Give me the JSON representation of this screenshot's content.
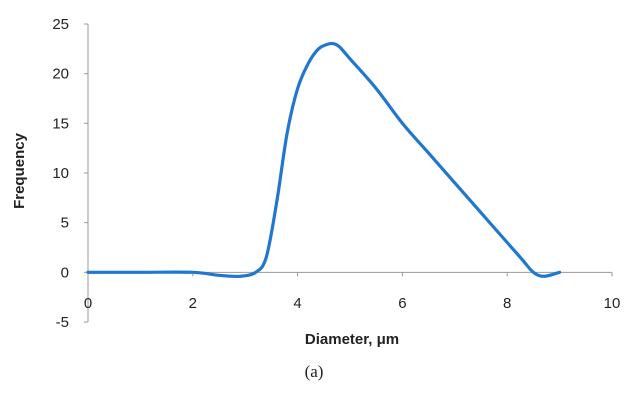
{
  "chart_data": {
    "type": "line",
    "xlabel": "Diameter, μm",
    "ylabel": "Frequency",
    "xlim": [
      0,
      10
    ],
    "ylim": [
      -5,
      25
    ],
    "xticks": [
      0,
      2,
      4,
      6,
      8,
      10
    ],
    "yticks": [
      -5,
      0,
      5,
      10,
      15,
      20,
      25
    ],
    "grid": false,
    "line_color": "#1f77d0",
    "series": [
      {
        "x": [
          0,
          1,
          2,
          2.5,
          2.9,
          3.2,
          3.4,
          3.6,
          3.8,
          4.0,
          4.2,
          4.4,
          4.6,
          4.7,
          4.8,
          5.0,
          5.5,
          6.0,
          6.5,
          7.0,
          7.5,
          8.0,
          8.3,
          8.5,
          8.7,
          9.0
        ],
        "y": [
          0,
          0,
          0,
          -0.3,
          -0.4,
          0,
          1.5,
          7,
          14,
          18.5,
          21,
          22.5,
          23,
          23,
          22.7,
          21.5,
          18.5,
          15,
          12,
          9,
          6,
          3,
          1.2,
          0,
          -0.4,
          0
        ]
      }
    ]
  },
  "caption": "(a)"
}
